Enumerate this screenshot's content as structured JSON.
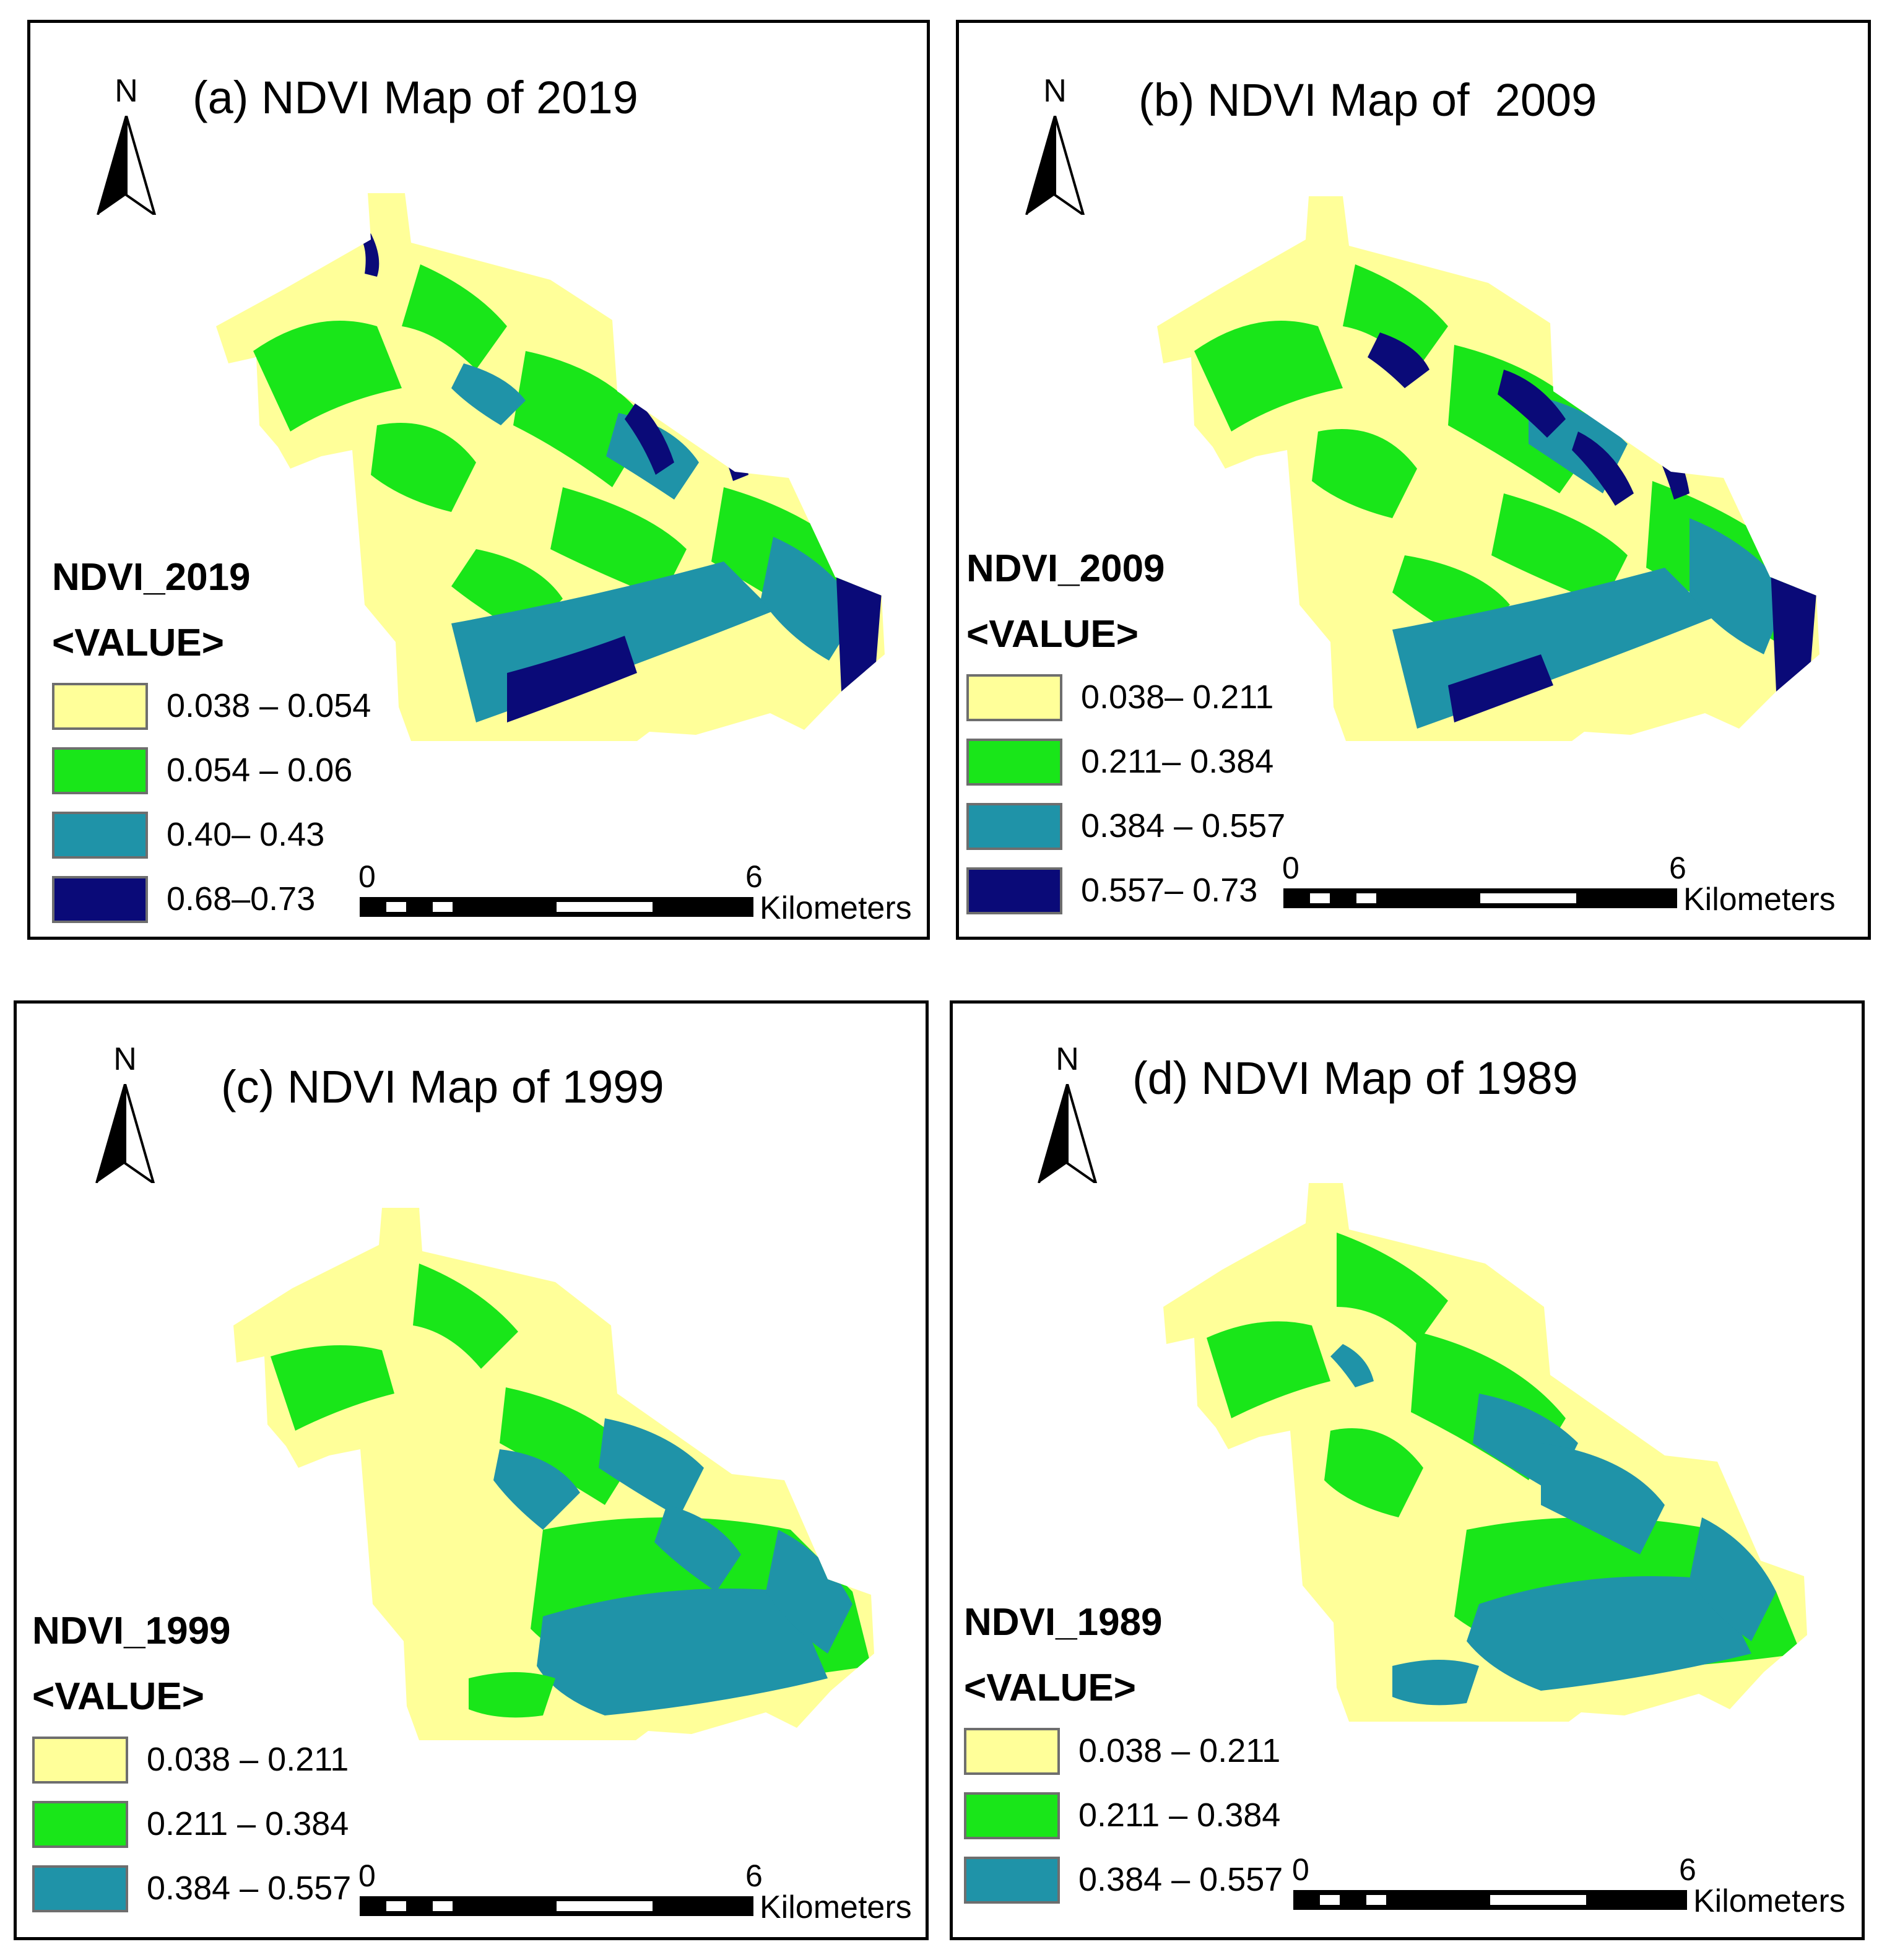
{
  "colors": {
    "class1": "#FFFF99",
    "class2": "#19E619",
    "class3": "#1F93A8",
    "class4": "#0A0A78",
    "swatch_border": "#6e6e6e"
  },
  "north_label": "N",
  "panels": [
    {
      "title": "(a) NDVI Map of 2019",
      "legend_title": "NDVI_2019",
      "legend_sub": "<VALUE>",
      "legend": [
        "0.038 – 0.054",
        "0.054 – 0.06",
        "0.40– 0.43",
        "0.68–0.73"
      ],
      "scale": {
        "start": "0",
        "end": "6",
        "unit": "Kilometers"
      }
    },
    {
      "title": "(b) NDVI Map of  2009",
      "legend_title": "NDVI_2009",
      "legend_sub": "<VALUE>",
      "legend": [
        "0.038– 0.211",
        "0.211– 0.384",
        "0.384 – 0.557",
        "0.557– 0.73"
      ],
      "scale": {
        "start": "0",
        "end": "6",
        "unit": "Kilometers"
      }
    },
    {
      "title": "(c) NDVI Map of 1999",
      "legend_title": "NDVI_1999",
      "legend_sub": "<VALUE>",
      "legend": [
        "0.038 – 0.211",
        "0.211 – 0.384",
        "0.384 – 0.557"
      ],
      "scale": {
        "start": "0",
        "end": "6",
        "unit": "Kilometers"
      }
    },
    {
      "title": "(d) NDVI Map of 1989",
      "legend_title": "NDVI_1989",
      "legend_sub": "<VALUE>",
      "legend": [
        "0.038 – 0.211",
        "0.211 – 0.384",
        "0.384 – 0.557"
      ],
      "scale": {
        "start": "0",
        "end": "6",
        "unit": "Kilometers"
      }
    }
  ]
}
